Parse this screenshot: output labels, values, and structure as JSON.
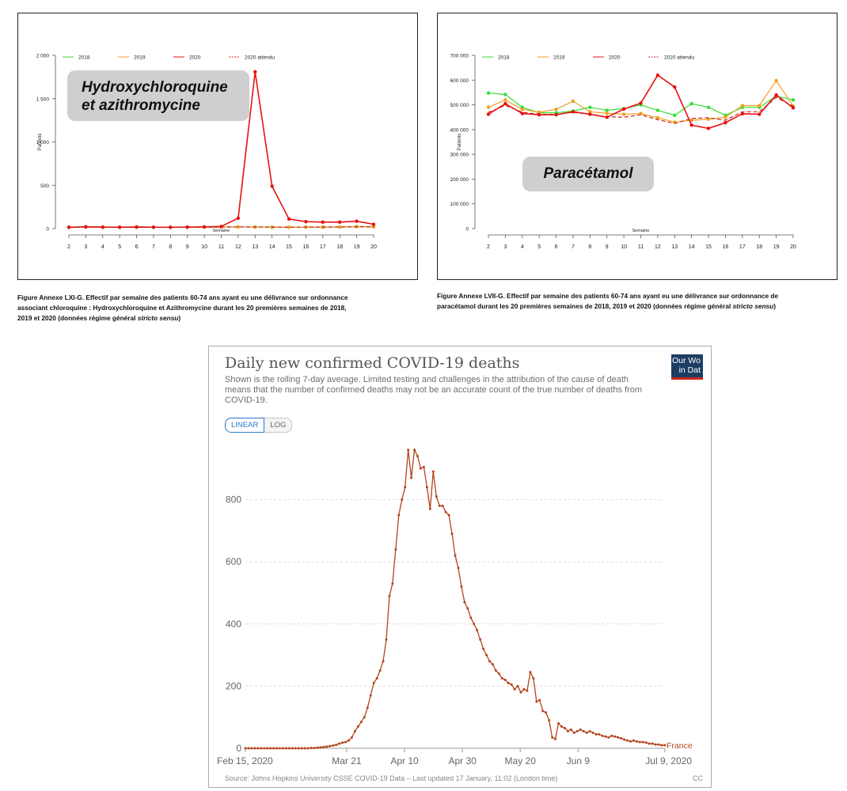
{
  "chart_data": [
    {
      "type": "line",
      "title": "Hydroxychloroquine et azithromycine",
      "xlabel": "Semaine",
      "ylabel": "Patients",
      "x": [
        2,
        3,
        4,
        5,
        6,
        7,
        8,
        9,
        10,
        11,
        12,
        13,
        14,
        15,
        16,
        17,
        18,
        19,
        20
      ],
      "ylim": [
        0,
        2000
      ],
      "yticks": [
        "0",
        "500",
        "1 000",
        "1 500",
        "2 000"
      ],
      "yticks_values": [
        0,
        500,
        1000,
        1500,
        2000
      ],
      "legend_position": "top",
      "series": [
        {
          "name": "2018",
          "color": "#33dd33",
          "dashed": false,
          "values": [
            15,
            22,
            18,
            17,
            20,
            17,
            16,
            18,
            17,
            19,
            20,
            19,
            18,
            17,
            18,
            18,
            19,
            24,
            22
          ]
        },
        {
          "name": "2019",
          "color": "#f0a020",
          "dashed": false,
          "values": [
            14,
            18,
            17,
            16,
            19,
            17,
            15,
            17,
            16,
            18,
            19,
            18,
            17,
            16,
            17,
            17,
            18,
            22,
            20
          ]
        },
        {
          "name": "2020",
          "color": "#e81010",
          "dashed": false,
          "values": [
            15,
            20,
            17,
            15,
            18,
            16,
            15,
            17,
            20,
            25,
            120,
            1810,
            490,
            110,
            80,
            75,
            75,
            85,
            50
          ]
        },
        {
          "name": "2020 attendu",
          "color": "#cc2020",
          "dashed": true,
          "values": [
            14,
            19,
            17,
            16,
            19,
            17,
            15,
            17,
            16,
            18,
            19,
            18,
            17,
            16,
            17,
            17,
            18,
            22,
            20
          ]
        }
      ]
    },
    {
      "type": "line",
      "title": "Paracétamol",
      "xlabel": "Semaine",
      "ylabel": "Patients",
      "x": [
        2,
        3,
        4,
        5,
        6,
        7,
        8,
        9,
        10,
        11,
        12,
        13,
        14,
        15,
        16,
        17,
        18,
        19,
        20
      ],
      "ylim": [
        0,
        700000
      ],
      "yticks": [
        "0",
        "100 000",
        "200 000",
        "300 000",
        "400 000",
        "500 000",
        "600 000",
        "700 000"
      ],
      "yticks_values": [
        0,
        100000,
        200000,
        300000,
        400000,
        500000,
        600000,
        700000
      ],
      "legend_position": "top",
      "series": [
        {
          "name": "2018",
          "color": "#33dd33",
          "dashed": false,
          "values": [
            548000,
            542000,
            490000,
            468000,
            468000,
            475000,
            490000,
            478000,
            485000,
            500000,
            478000,
            458000,
            505000,
            490000,
            458000,
            490000,
            490000,
            535000,
            520000
          ]
        },
        {
          "name": "2019",
          "color": "#f0a020",
          "dashed": false,
          "values": [
            490000,
            520000,
            482000,
            470000,
            482000,
            515000,
            472000,
            466000,
            462000,
            465000,
            448000,
            430000,
            438000,
            442000,
            450000,
            497000,
            497000,
            598000,
            495000
          ]
        },
        {
          "name": "2020",
          "color": "#e81010",
          "dashed": false,
          "values": [
            462000,
            505000,
            465000,
            460000,
            460000,
            472000,
            462000,
            450000,
            483000,
            507000,
            620000,
            572000,
            418000,
            405000,
            428000,
            464000,
            462000,
            540000,
            488000
          ]
        },
        {
          "name": "2020 attendu",
          "color": "#cc2020",
          "dashed": true,
          "values": [
            470000,
            498000,
            470000,
            462000,
            462000,
            470000,
            462000,
            452000,
            450000,
            460000,
            440000,
            425000,
            445000,
            448000,
            438000,
            472000,
            472000,
            530000,
            495000
          ]
        }
      ]
    },
    {
      "type": "line",
      "title": "Daily new confirmed COVID-19 deaths",
      "subtitle": "Shown is the rolling 7-day average. Limited testing and challenges in the attribution of the cause of death means that the number of confirmed deaths may not be an accurate count of the true number of deaths from COVID-19.",
      "x_start": "Feb 15, 2020",
      "x_end": "Jul 9, 2020",
      "xticks": [
        "Feb 15, 2020",
        "Mar 21",
        "Apr 10",
        "Apr 30",
        "May 20",
        "Jun 9",
        "Jul 9, 2020"
      ],
      "ylim": [
        0,
        1000
      ],
      "yticks": [
        "0",
        "200",
        "400",
        "600",
        "800"
      ],
      "yticks_values": [
        0,
        200,
        400,
        600,
        800
      ],
      "grid": true,
      "series": [
        {
          "name": "France",
          "color": "#b5441c",
          "values": [
            0,
            0,
            0,
            0,
            0,
            0,
            0,
            0,
            0,
            0,
            0,
            0,
            0,
            0,
            0,
            0,
            0,
            0,
            0,
            0,
            0,
            1,
            1,
            2,
            3,
            4,
            5,
            7,
            9,
            11,
            15,
            18,
            20,
            25,
            35,
            55,
            70,
            85,
            100,
            130,
            170,
            210,
            225,
            250,
            280,
            350,
            490,
            530,
            640,
            750,
            800,
            840,
            960,
            870,
            960,
            940,
            900,
            905,
            840,
            770,
            890,
            810,
            780,
            780,
            760,
            750,
            690,
            620,
            580,
            520,
            470,
            450,
            420,
            400,
            380,
            350,
            320,
            300,
            280,
            270,
            250,
            240,
            225,
            220,
            210,
            205,
            190,
            200,
            180,
            190,
            185,
            245,
            225,
            150,
            155,
            120,
            115,
            90,
            35,
            30,
            80,
            70,
            65,
            55,
            60,
            50,
            55,
            60,
            55,
            50,
            55,
            50,
            45,
            45,
            40,
            38,
            35,
            40,
            38,
            35,
            32,
            28,
            25,
            22,
            25,
            22,
            20,
            20,
            18,
            15,
            15,
            12,
            12,
            10,
            10
          ]
        }
      ],
      "scale_options": [
        "LINEAR",
        "LOG"
      ],
      "active_scale": "LINEAR",
      "source": "Source: Johns Hopkins University CSSE COVID-19 Data – Last updated 17 January, 11:02 (London time)",
      "license": "CC",
      "logo_lines": [
        "Our Wo",
        "in Dat"
      ]
    }
  ],
  "captions": {
    "left": {
      "line1": "Figure Annexe LXI-G. Effectif par semaine des patients 60-74 ans ayant eu une délivrance sur ordonnance",
      "line2": "associant chloroquine : Hydroxychloroquine et Azithromycine durant les 20 premières semaines de 2018,",
      "line3_pre": "2019 et 2020 (données régime général ",
      "line3_italic": "stricto sensu",
      "line3_post": ")"
    },
    "right": {
      "line1": "Figure Annexe LVII-G. Effectif par semaine des patients 60-74 ans ayant eu une délivrance sur ordonnance de",
      "line2_pre": "paracétamol durant les 20 premières semaines de 2018, 2019 et 2020 (données régime général ",
      "line2_italic": "stricto sensu",
      "line2_post": ")"
    }
  },
  "pills": {
    "left_line1": "Hydroxychloroquine",
    "left_line2": "et azithromycine",
    "right": "Paracétamol"
  },
  "colors": {
    "series_2018": "#33dd33",
    "series_2019": "#f0a020",
    "series_2020": "#e81010",
    "covid_line": "#b5441c",
    "owid_blue": "#1d3d63",
    "owid_red": "#ce261e",
    "toggle_blue": "#2878c8"
  }
}
